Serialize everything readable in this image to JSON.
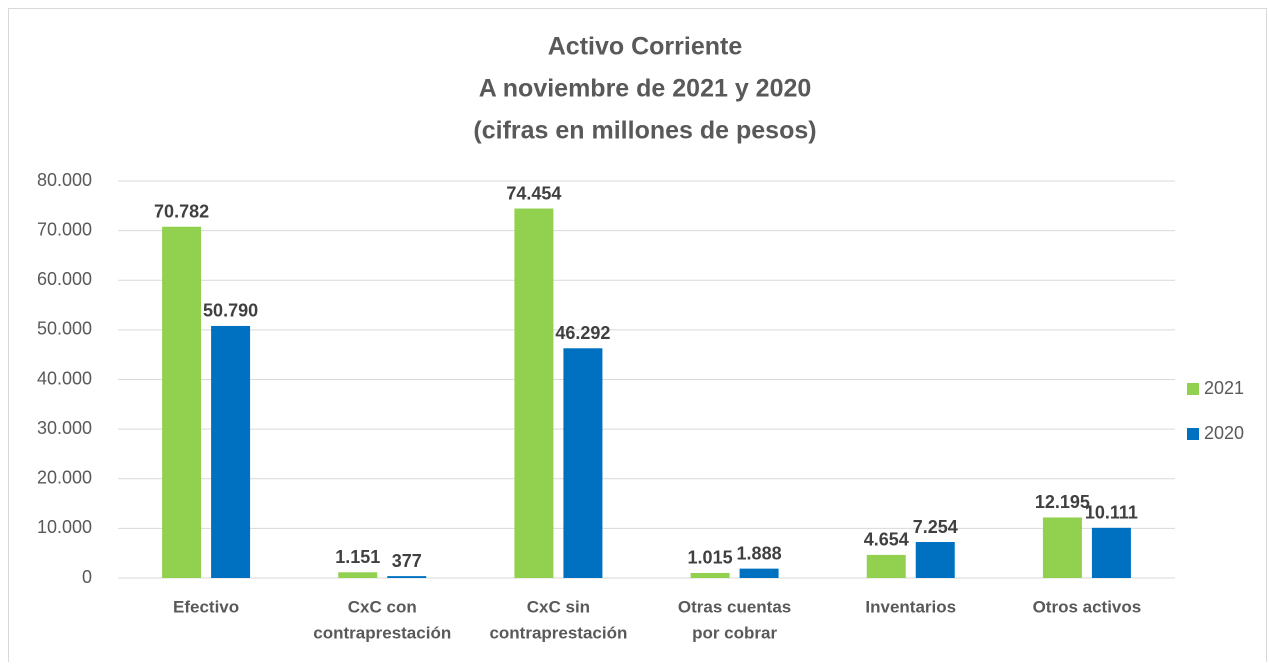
{
  "chart_data": {
    "type": "bar",
    "title": [
      "Activo Corriente",
      "A noviembre de 2021 y 2020",
      "(cifras en millones de pesos)"
    ],
    "categories": [
      [
        "Efectivo"
      ],
      [
        "CxC con",
        "contraprestación"
      ],
      [
        "CxC sin",
        "contraprestación"
      ],
      [
        "Otras cuentas",
        "por cobrar"
      ],
      [
        "Inventarios"
      ],
      [
        "Otros activos"
      ]
    ],
    "series": [
      {
        "name": "2021",
        "color": "#92d050",
        "values": [
          70782,
          1151,
          74454,
          1015,
          4654,
          12195
        ],
        "value_labels": [
          "70.782",
          "1.151",
          "74.454",
          "1.015",
          "4.654",
          "12.195"
        ]
      },
      {
        "name": "2020",
        "color": "#0070c0",
        "values": [
          50790,
          377,
          46292,
          1888,
          7254,
          10111
        ],
        "value_labels": [
          "50.790",
          "377",
          "46.292",
          "1.888",
          "7.254",
          "10.111"
        ]
      }
    ],
    "ylim": [
      0,
      80000
    ],
    "yticks": [
      0,
      {
        "value": 10000,
        "label": "10.000"
      },
      {
        "value": 20000,
        "label": "20.000"
      },
      {
        "value": 30000,
        "label": "30.000"
      },
      {
        "value": 40000,
        "label": "40.000"
      },
      {
        "value": 50000,
        "label": "50.000"
      },
      {
        "value": 60000,
        "label": "60.000"
      },
      {
        "value": 70000,
        "label": "70.000"
      },
      {
        "value": 80000,
        "label": "80.000"
      }
    ],
    "grid": true,
    "legend": "right"
  }
}
